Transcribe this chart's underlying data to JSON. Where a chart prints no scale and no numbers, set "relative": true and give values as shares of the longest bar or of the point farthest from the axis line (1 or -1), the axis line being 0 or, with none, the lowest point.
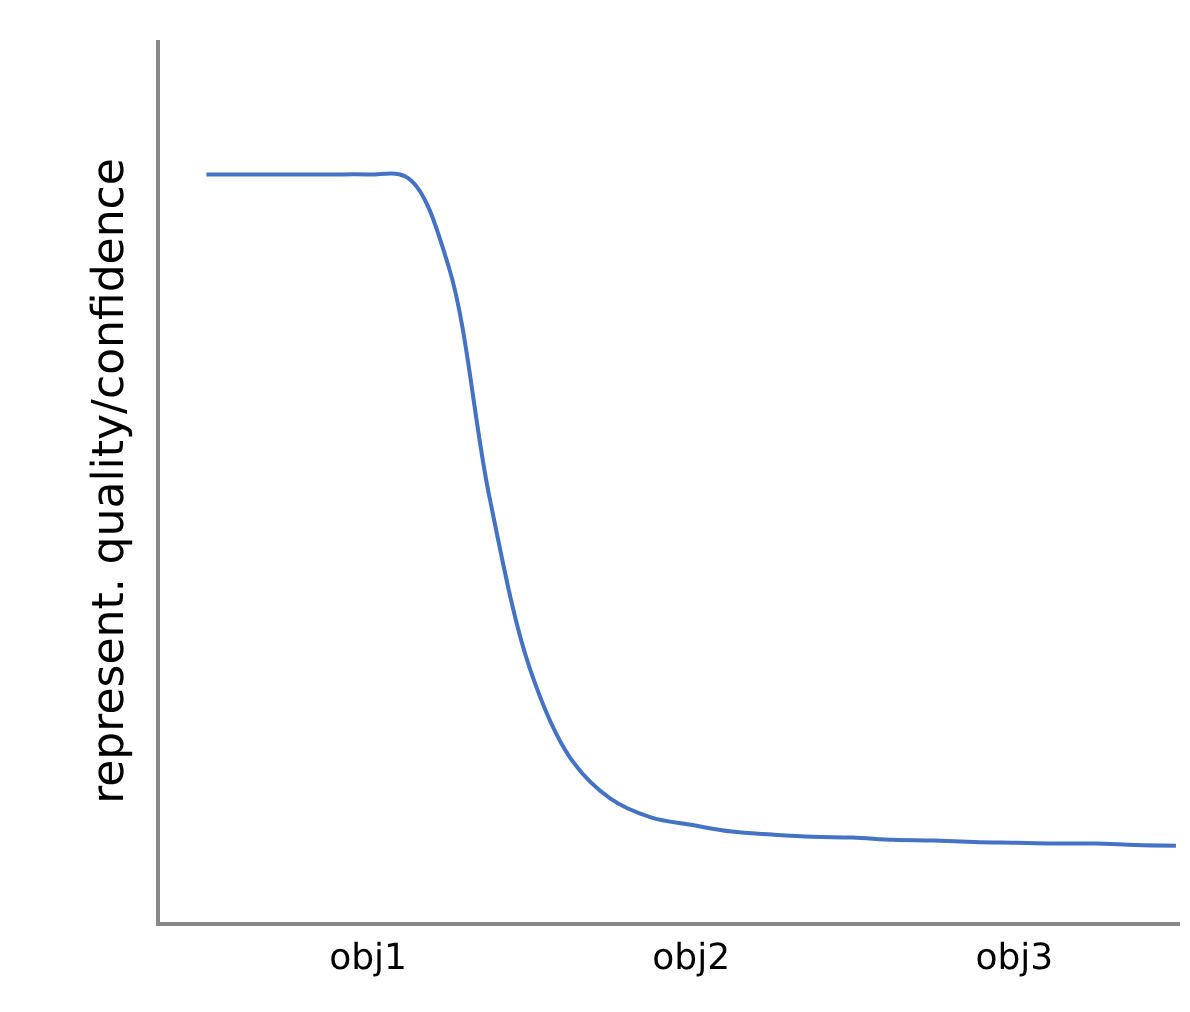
{
  "chart_data": {
    "type": "line",
    "relative": true,
    "ylabel": "represent. quality/confidence",
    "categories": [
      null,
      null,
      null,
      null,
      "obj1",
      null,
      null,
      null,
      null,
      null,
      null,
      null,
      "obj2",
      null,
      null,
      null,
      null,
      null,
      null,
      null,
      "obj3",
      null,
      null,
      null,
      null
    ],
    "series": [
      {
        "color": "#4472c4",
        "values": [
          1,
          1,
          1,
          1,
          1,
          0.995,
          0.876,
          0.57,
          0.34,
          0.22,
          0.165,
          0.14,
          0.13,
          0.121,
          0.117,
          0.114,
          0.113,
          0.11,
          0.109,
          0.107,
          0.106,
          0.105,
          0.105,
          0.103,
          0.102
        ]
      }
    ],
    "marker": "none",
    "line_style": "solid"
  }
}
